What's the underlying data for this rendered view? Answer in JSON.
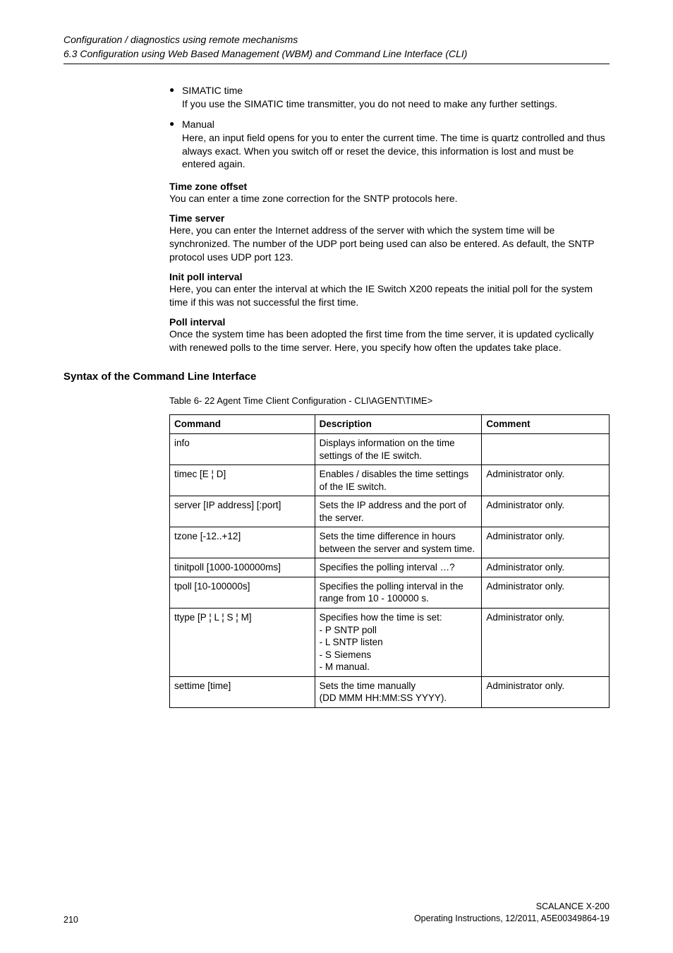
{
  "header": {
    "title": "Configuration / diagnostics using remote mechanisms",
    "subtitle": "6.3 Configuration using Web Based Management (WBM) and Command Line Interface (CLI)"
  },
  "bullets": [
    {
      "title": "SIMATIC time",
      "body": "If you use the SIMATIC time transmitter, you do not need to make any further settings."
    },
    {
      "title": "Manual",
      "body": "Here, an input field opens for you to enter the current time. The time is quartz controlled and thus always exact. When you switch off or reset the device, this information is lost and must be entered again."
    }
  ],
  "sections": [
    {
      "heading": "Time zone offset",
      "body": "You can enter a time zone correction for the SNTP protocols here."
    },
    {
      "heading": "Time server",
      "body": "Here, you can enter the Internet address of the server with which the system time will be synchronized. The number of the UDP port being used can also be entered. As default, the SNTP protocol uses UDP port 123."
    },
    {
      "heading": "Init poll interval",
      "body": "Here, you can enter the interval at which the IE Switch X200 repeats the initial poll for the system time if this was not successful the first time."
    },
    {
      "heading": "Poll interval",
      "body": "Once the system time has been adopted the first time from the time server, it is updated cyclically with renewed polls to the time server. Here, you specify how often the updates take place."
    }
  ],
  "cli": {
    "heading": "Syntax of the Command Line Interface",
    "caption": "Table 6- 22    Agent Time Client Configuration - CLI\\AGENT\\TIME>",
    "columns": [
      "Command",
      "Description",
      "Comment"
    ],
    "rows": [
      {
        "cmd": "info",
        "desc": "Displays information on the time settings of the IE switch.",
        "comment": ""
      },
      {
        "cmd": "timec [E ¦ D]",
        "desc": "Enables / disables the time settings of the IE switch.",
        "comment": "Administrator only."
      },
      {
        "cmd": "server [IP address] [:port]",
        "desc": "Sets the IP address and the port of the server.",
        "comment": "Administrator only."
      },
      {
        "cmd": "tzone [-12..+12]",
        "desc": "Sets the time difference in hours between the server and system time.",
        "comment": "Administrator only."
      },
      {
        "cmd": "tinitpoll [1000-100000ms]",
        "desc": "Specifies the polling interval …?",
        "comment": "Administrator only."
      },
      {
        "cmd": "tpoll [10-100000s]",
        "desc": "Specifies the polling interval in the range from 10 - 100000 s.",
        "comment": "Administrator only."
      },
      {
        "cmd": "ttype [P ¦ L ¦ S ¦ M]",
        "desc": "Specifies how the time is set:\n- P SNTP poll\n- L SNTP listen\n- S Siemens\n- M manual.",
        "comment": "Administrator only."
      },
      {
        "cmd": "settime [time]",
        "desc": "Sets the time manually\n(DD MMM HH:MM:SS YYYY).",
        "comment": "Administrator only."
      }
    ]
  },
  "footer": {
    "page_number": "210",
    "product": "SCALANCE X-200",
    "doc_info": "Operating Instructions, 12/2011, A5E00349864-19"
  }
}
